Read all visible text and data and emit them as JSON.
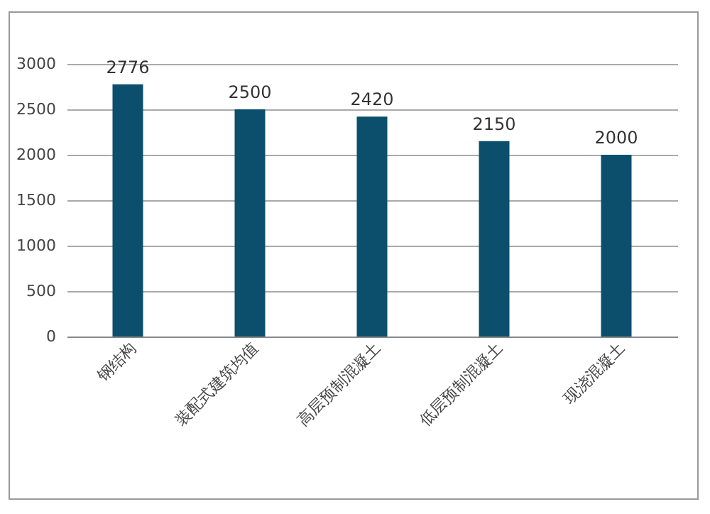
{
  "chart_data": {
    "type": "bar",
    "categories": [
      "钢结构",
      "装配式建筑均值",
      "高层预制混凝土",
      "低层预制混凝土",
      "现浇混凝土"
    ],
    "values": [
      2776,
      2500,
      2420,
      2150,
      2000
    ],
    "color": "#0b4f6c",
    "ylim": [
      0,
      3000
    ],
    "yticks": [
      0,
      500,
      1000,
      1500,
      2000,
      2500,
      3000
    ],
    "grid": "y",
    "data_labels": true
  }
}
